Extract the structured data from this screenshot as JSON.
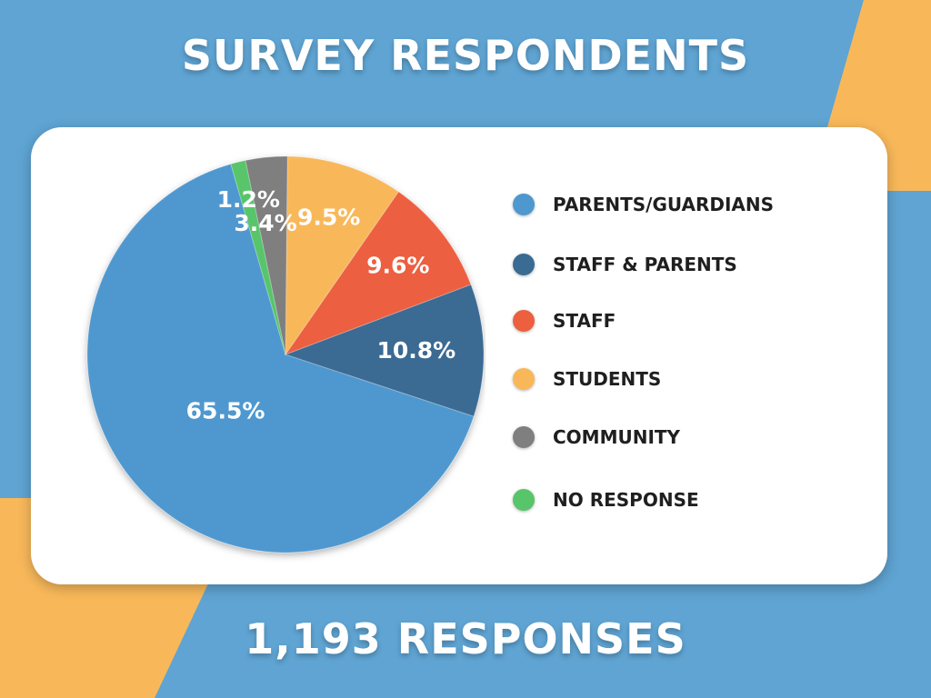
{
  "title": "SURVEY RESPONDENTS",
  "footer": "1,193 RESPONSES",
  "colors": {
    "background": "#5fa4d3",
    "accent_yellow": "#f8b85a",
    "card": "#ffffff"
  },
  "chart_data": {
    "type": "pie",
    "title": "SURVEY RESPONDENTS",
    "legend_placement": "right",
    "series": [
      {
        "name": "PARENTS/GUARDIANS",
        "value": 65.5,
        "label": "65.5%",
        "color": "#4f98cf"
      },
      {
        "name": "STAFF & PARENTS",
        "value": 10.8,
        "label": "10.8%",
        "color": "#3a6b93"
      },
      {
        "name": "STAFF",
        "value": 9.6,
        "label": "9.6%",
        "color": "#ec5f3f"
      },
      {
        "name": "STUDENTS",
        "value": 9.5,
        "label": "9.5%",
        "color": "#f8b85a"
      },
      {
        "name": "COMMUNITY",
        "value": 3.4,
        "label": "3.4%",
        "color": "#7f7f7f"
      },
      {
        "name": "NO RESPONSE",
        "value": 1.2,
        "label": "1.2%",
        "color": "#58c56a"
      }
    ]
  }
}
